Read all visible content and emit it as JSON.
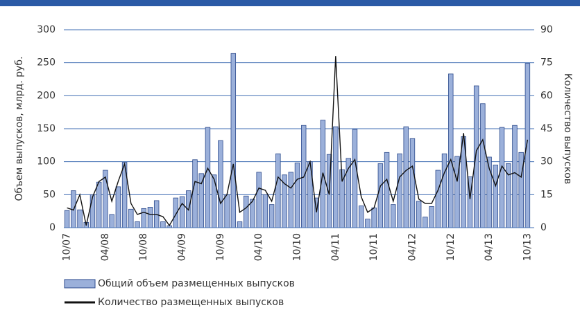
{
  "chart_data": {
    "type": "bar-line",
    "categories": [
      "10/07",
      null,
      null,
      null,
      null,
      null,
      "04/08",
      null,
      null,
      null,
      null,
      null,
      "10/08",
      null,
      null,
      null,
      null,
      null,
      "04/09",
      null,
      null,
      null,
      null,
      null,
      "10/09",
      null,
      null,
      null,
      null,
      null,
      "04/10",
      null,
      null,
      null,
      null,
      null,
      "10/10",
      null,
      null,
      null,
      null,
      null,
      "04/11",
      null,
      null,
      null,
      null,
      null,
      "10/11",
      null,
      null,
      null,
      null,
      null,
      "04/12",
      null,
      null,
      null,
      null,
      null,
      "10/12",
      null,
      null,
      null,
      null,
      null,
      "04/13",
      null,
      null,
      null,
      null,
      null,
      "10/13"
    ],
    "series": [
      {
        "name": "Общий объем размещенных выпусков",
        "type": "bar",
        "color": "#9bb0da",
        "values": [
          26,
          56,
          27,
          8,
          50,
          69,
          87,
          20,
          62,
          99,
          28,
          9,
          29,
          31,
          41,
          9,
          3,
          45,
          47,
          56,
          103,
          82,
          152,
          80,
          132,
          50,
          264,
          9,
          48,
          43,
          84,
          50,
          35,
          112,
          80,
          84,
          98,
          155,
          100,
          45,
          163,
          111,
          153,
          88,
          105,
          149,
          33,
          13,
          30,
          97,
          114,
          35,
          112,
          153,
          135,
          40,
          16,
          32,
          87,
          112,
          233,
          108,
          138,
          77,
          215,
          188,
          107,
          95,
          152,
          97,
          155,
          114,
          249
        ]
      },
      {
        "name": "Количество размещенных выпусков",
        "type": "line",
        "axis": "y2",
        "color": "#111111",
        "values": [
          9,
          8,
          15,
          1,
          14,
          21,
          23,
          12,
          21,
          29,
          11,
          6,
          7,
          6,
          6,
          5,
          1,
          6,
          11,
          8,
          21,
          20,
          27,
          22,
          11,
          15,
          29,
          7,
          9,
          12,
          18,
          17,
          12,
          23,
          20,
          18,
          22,
          23,
          30,
          7,
          25,
          15,
          78,
          21,
          27,
          31,
          14,
          7,
          9,
          19,
          22,
          12,
          23,
          26,
          28,
          13,
          11,
          11,
          17,
          25,
          31,
          21,
          43,
          13,
          35,
          40,
          27,
          19,
          28,
          24,
          25,
          23,
          40
        ]
      }
    ],
    "ylabel": "Объем выпусков, млрд. руб.",
    "y2label": "Количество выпусков",
    "ylim": [
      0,
      300
    ],
    "yticks": [
      0,
      50,
      100,
      150,
      200,
      250,
      300
    ],
    "y2lim": [
      0,
      90
    ],
    "y2ticks": [
      0,
      15,
      30,
      45,
      60,
      75,
      90
    ],
    "grid": true
  }
}
